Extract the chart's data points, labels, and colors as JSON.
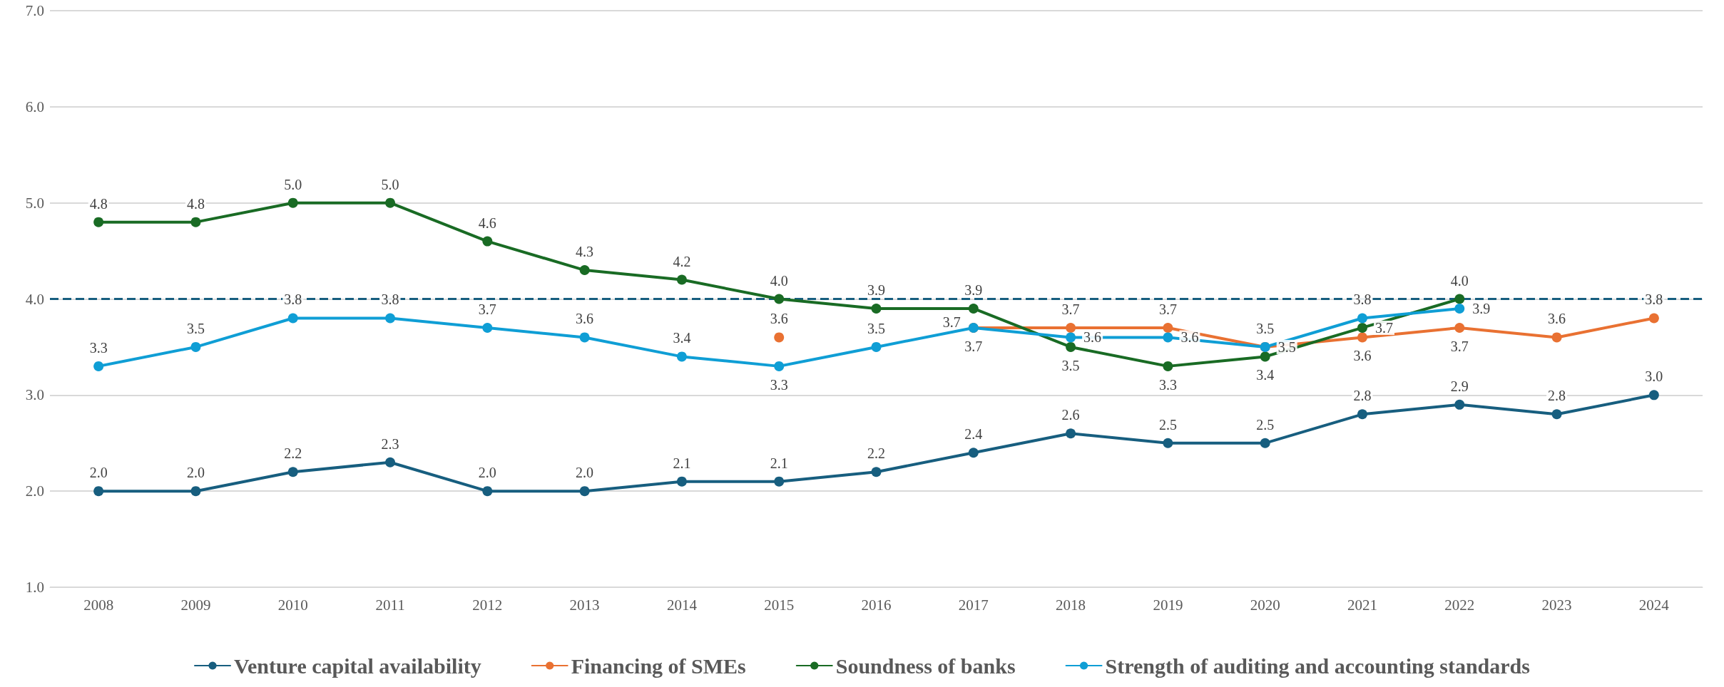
{
  "chart_data": {
    "type": "line",
    "categories": [
      "2008",
      "2009",
      "2010",
      "2011",
      "2012",
      "2013",
      "2014",
      "2015",
      "2016",
      "2017",
      "2018",
      "2019",
      "2020",
      "2021",
      "2022",
      "2023",
      "2024"
    ],
    "series": [
      {
        "name": "Venture capital availability",
        "color": "#175e7f",
        "values": [
          2.0,
          2.0,
          2.2,
          2.3,
          2.0,
          2.0,
          2.1,
          2.1,
          2.2,
          2.4,
          2.6,
          2.5,
          2.5,
          2.8,
          2.9,
          2.8,
          3.0
        ],
        "value_labels": [
          "2.0",
          "2.0",
          "2.2",
          "2.3",
          "2.0",
          "2.0",
          "2.1",
          "2.1",
          "2.2",
          "2.4",
          "2.6",
          "2.5",
          "2.5",
          "2.8",
          "2.9",
          "2.8",
          "3.0"
        ]
      },
      {
        "name": "Financing of SMEs",
        "color": "#e97132",
        "values": [
          null,
          null,
          null,
          null,
          null,
          null,
          null,
          3.6,
          null,
          3.7,
          3.7,
          3.7,
          3.5,
          3.6,
          3.7,
          3.6,
          3.8
        ],
        "value_labels": [
          null,
          null,
          null,
          null,
          null,
          null,
          null,
          "3.6",
          null,
          "3.7",
          "3.7",
          "3.7",
          "3.5",
          "3.6",
          "3.7",
          "3.6",
          "3.8"
        ]
      },
      {
        "name": "Soundness of banks",
        "color": "#196b24",
        "values": [
          4.8,
          4.8,
          5.0,
          5.0,
          4.6,
          4.3,
          4.2,
          4.0,
          3.9,
          3.9,
          3.5,
          3.3,
          3.4,
          3.7,
          4.0,
          null,
          null
        ],
        "value_labels": [
          "4.8",
          "4.8",
          "5.0",
          "5.0",
          "4.6",
          "4.3",
          "4.2",
          "4.0",
          "3.9",
          "3.9",
          "3.5",
          "3.3",
          "3.4",
          "3.7",
          "4.0",
          null,
          null
        ]
      },
      {
        "name": "Strength of auditing and accounting standards",
        "color": "#0f9ed5",
        "values": [
          3.3,
          3.5,
          3.8,
          3.8,
          3.7,
          3.6,
          3.4,
          3.3,
          3.5,
          3.7,
          3.6,
          3.6,
          3.5,
          3.8,
          3.9,
          null,
          null
        ],
        "value_labels": [
          "3.3",
          "3.5",
          "3.8",
          "3.8",
          "3.7",
          "3.6",
          "3.4",
          "3.3",
          "3.5",
          "3.7",
          "3.6",
          "3.6",
          "3.5",
          "3.8",
          "3.9",
          null,
          null
        ]
      }
    ],
    "ylim": [
      1,
      7
    ],
    "yticks": [
      {
        "value": 1,
        "label": "1.0"
      },
      {
        "value": 2,
        "label": "2.0"
      },
      {
        "value": 3,
        "label": "3.0"
      },
      {
        "value": 4,
        "label": "4.0"
      },
      {
        "value": 5,
        "label": "5.0"
      },
      {
        "value": 6,
        "label": "6.0"
      },
      {
        "value": 7,
        "label": "7.0"
      }
    ],
    "ref_lines": [
      {
        "axis": "y",
        "value": 4.0,
        "color": "#175e7f",
        "line_style": "dashed"
      }
    ],
    "grid": "y",
    "legend": "bottom",
    "marker": "circle",
    "line_style": "solid"
  }
}
